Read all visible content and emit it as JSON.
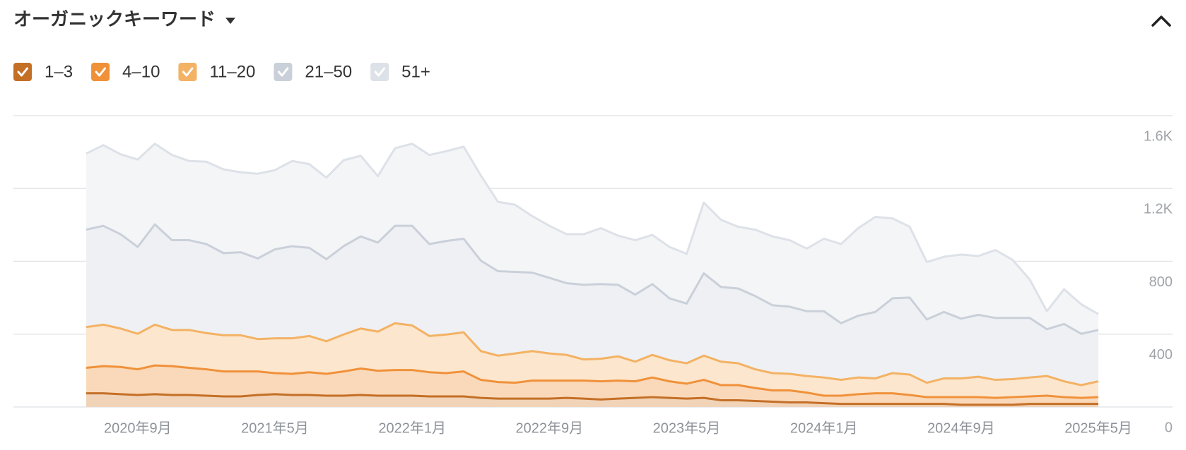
{
  "chart_data": {
    "type": "stacked-area",
    "title": "オーガニックキーワード",
    "categories": [
      null,
      null,
      null,
      "2020年9月",
      null,
      null,
      null,
      null,
      null,
      null,
      null,
      "2021年5月",
      null,
      null,
      null,
      null,
      null,
      null,
      null,
      "2022年1月",
      null,
      null,
      null,
      null,
      null,
      null,
      null,
      "2022年9月",
      null,
      null,
      null,
      null,
      null,
      null,
      null,
      "2023年5月",
      null,
      null,
      null,
      null,
      null,
      null,
      null,
      "2024年1月",
      null,
      null,
      null,
      null,
      null,
      null,
      null,
      "2024年9月",
      null,
      null,
      null,
      null,
      null,
      null,
      null,
      "2025年5月"
    ],
    "series": [
      {
        "name": "1–3",
        "color": "#c46f26",
        "fill": "#f1d3b8",
        "values": [
          75,
          75,
          70,
          66,
          70,
          66,
          66,
          62,
          58,
          58,
          66,
          70,
          66,
          66,
          62,
          62,
          66,
          62,
          62,
          62,
          58,
          58,
          58,
          50,
          46,
          46,
          46,
          46,
          50,
          46,
          41,
          46,
          50,
          54,
          50,
          46,
          50,
          37,
          37,
          33,
          29,
          25,
          25,
          21,
          17,
          17,
          17,
          17,
          17,
          17,
          17,
          12,
          12,
          12,
          12,
          17,
          17,
          17,
          17,
          17
        ]
      },
      {
        "name": "4–10",
        "color": "#f0913a",
        "fill": "#fad9ba",
        "values": [
          140,
          149,
          150,
          141,
          158,
          158,
          149,
          145,
          137,
          137,
          129,
          116,
          116,
          125,
          120,
          133,
          145,
          137,
          141,
          141,
          133,
          128,
          137,
          99,
          91,
          87,
          99,
          99,
          95,
          99,
          100,
          99,
          91,
          108,
          91,
          82,
          99,
          83,
          83,
          71,
          62,
          66,
          54,
          41,
          45,
          53,
          58,
          58,
          49,
          37,
          37,
          42,
          42,
          38,
          42,
          41,
          45,
          37,
          33,
          37
        ]
      },
      {
        "name": "11–20",
        "color": "#f3b264",
        "fill": "#fce6cd",
        "values": [
          224,
          228,
          211,
          195,
          224,
          199,
          208,
          199,
          199,
          199,
          178,
          191,
          195,
          199,
          179,
          203,
          220,
          215,
          257,
          245,
          199,
          212,
          215,
          158,
          145,
          161,
          162,
          149,
          141,
          116,
          124,
          133,
          108,
          124,
          116,
          112,
          133,
          129,
          120,
          103,
          95,
          91,
          91,
          100,
          87,
          92,
          82,
          111,
          112,
          79,
          103,
          103,
          112,
          99,
          99,
          104,
          108,
          87,
          70,
          87
        ]
      },
      {
        "name": "21–50",
        "color": "#cad0d9",
        "fill": "#eef0f4",
        "values": [
          535,
          543,
          518,
          477,
          551,
          493,
          493,
          489,
          451,
          456,
          443,
          489,
          506,
          484,
          451,
          485,
          506,
          489,
          535,
          547,
          505,
          514,
          514,
          497,
          464,
          448,
          431,
          415,
          394,
          410,
          410,
          393,
          368,
          389,
          340,
          328,
          452,
          410,
          411,
          402,
          373,
          369,
          356,
          364,
          311,
          339,
          365,
          411,
          423,
          348,
          365,
          328,
          340,
          340,
          336,
          327,
          257,
          315,
          282,
          282
        ]
      },
      {
        "name": "51+",
        "color": "#dde1e8",
        "fill": "#f4f5f7",
        "values": [
          418,
          443,
          439,
          480,
          443,
          468,
          435,
          452,
          460,
          439,
          465,
          435,
          468,
          460,
          448,
          472,
          443,
          365,
          426,
          451,
          489,
          493,
          506,
          468,
          381,
          369,
          310,
          286,
          269,
          278,
          307,
          270,
          299,
          270,
          282,
          273,
          389,
          369,
          339,
          365,
          378,
          365,
          344,
          398,
          435,
          481,
          522,
          439,
          389,
          315,
          303,
          352,
          323,
          373,
          319,
          211,
          99,
          191,
          162,
          87
        ]
      }
    ],
    "ylim": [
      0,
      1600
    ],
    "yticks": [
      0,
      400,
      800,
      {
        "value": 1200,
        "label": "1.2K"
      },
      {
        "value": 1600,
        "label": "1.6K"
      }
    ],
    "grid": true
  }
}
